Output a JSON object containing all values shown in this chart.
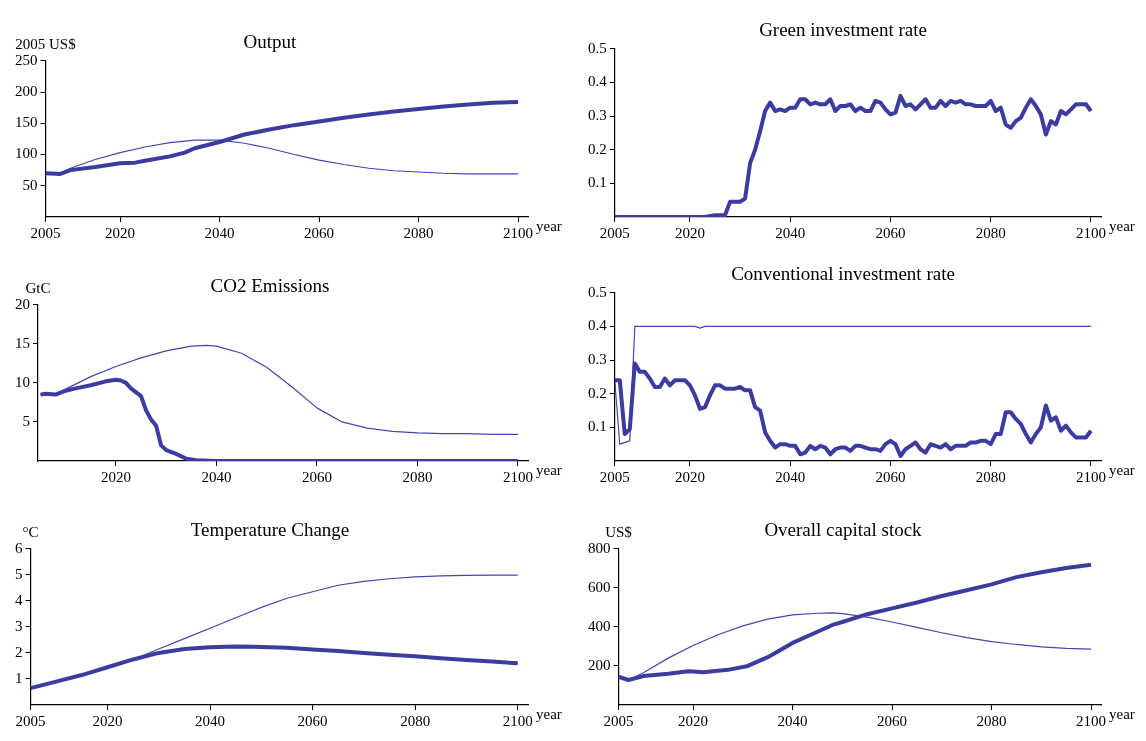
{
  "chart_data": [
    {
      "type": "line",
      "title": "Output",
      "ylabel": "2005 US$",
      "xlabel": "year",
      "xlim": [
        2005,
        2102
      ],
      "xticks": [
        2005,
        2020,
        2040,
        2060,
        2080,
        2100
      ],
      "ylim": [
        0,
        250
      ],
      "yticks": [
        50,
        100,
        150,
        200,
        250
      ],
      "grid": false,
      "legend": false,
      "marker": "none",
      "line_style": "solid",
      "series": [
        {
          "color": "#3c3ca0",
          "x": [
            2005,
            2008,
            2010,
            2015,
            2020,
            2023,
            2025,
            2030,
            2033,
            2035,
            2040,
            2045,
            2050,
            2055,
            2060,
            2065,
            2070,
            2075,
            2080,
            2085,
            2090,
            2095,
            2100
          ],
          "values": [
            70,
            69,
            75,
            80,
            86,
            87,
            90,
            97,
            103,
            110,
            120,
            132,
            140,
            147,
            153,
            159,
            164,
            169,
            173,
            177,
            180,
            183,
            184
          ]
        },
        {
          "color": "#4444b4",
          "x": [
            2005,
            2008,
            2010,
            2015,
            2020,
            2025,
            2030,
            2035,
            2040,
            2045,
            2050,
            2055,
            2060,
            2065,
            2070,
            2075,
            2080,
            2085,
            2090,
            2095,
            2100
          ],
          "values": [
            70,
            70,
            78,
            92,
            103,
            112,
            119,
            123,
            123,
            118,
            110,
            100,
            91,
            84,
            78,
            74,
            72,
            70,
            69,
            69,
            69
          ]
        }
      ]
    },
    {
      "type": "line",
      "title": "Green investment rate",
      "xlabel": "year",
      "xlim": [
        2005,
        2102
      ],
      "xticks": [
        2005,
        2020,
        2040,
        2060,
        2080,
        2100
      ],
      "ylim": [
        0,
        0.5
      ],
      "yticks": [
        0.1,
        0.2,
        0.3,
        0.4,
        0.5
      ],
      "grid": false,
      "legend": false,
      "marker": "none",
      "line_style": "solid",
      "series": [
        {
          "color": "#3c3ca0",
          "x": [
            2005,
            2023,
            2025,
            2027,
            2028,
            2030,
            2031,
            2032,
            2033,
            2034,
            2035,
            2036,
            2037,
            2038,
            2039,
            2040,
            2041,
            2042,
            2043,
            2044,
            2045,
            2046,
            2047,
            2048,
            2049,
            2050,
            2051,
            2052,
            2053,
            2054,
            2055,
            2056,
            2057,
            2058,
            2059,
            2060,
            2061,
            2062,
            2063,
            2064,
            2065,
            2066,
            2067,
            2068,
            2069,
            2070,
            2071,
            2072,
            2073,
            2074,
            2075,
            2076,
            2077,
            2078,
            2079,
            2080,
            2081,
            2082,
            2083,
            2084,
            2085,
            2086,
            2087,
            2088,
            2089,
            2090,
            2091,
            2092,
            2093,
            2094,
            2095,
            2096,
            2097,
            2098,
            2099,
            2100
          ],
          "values": [
            0,
            0,
            0.005,
            0.005,
            0.045,
            0.045,
            0.055,
            0.16,
            0.2,
            0.255,
            0.315,
            0.34,
            0.315,
            0.32,
            0.315,
            0.325,
            0.325,
            0.35,
            0.35,
            0.335,
            0.34,
            0.335,
            0.335,
            0.35,
            0.315,
            0.33,
            0.33,
            0.335,
            0.315,
            0.325,
            0.315,
            0.315,
            0.345,
            0.34,
            0.32,
            0.305,
            0.31,
            0.36,
            0.33,
            0.335,
            0.32,
            0.335,
            0.35,
            0.325,
            0.325,
            0.345,
            0.33,
            0.345,
            0.34,
            0.345,
            0.335,
            0.335,
            0.33,
            0.33,
            0.33,
            0.345,
            0.315,
            0.325,
            0.275,
            0.265,
            0.285,
            0.295,
            0.325,
            0.35,
            0.33,
            0.305,
            0.245,
            0.285,
            0.275,
            0.315,
            0.305,
            0.32,
            0.335,
            0.335,
            0.335,
            0.315
          ]
        }
      ]
    },
    {
      "type": "line",
      "title": "CO2 Emissions",
      "ylabel": "GtC",
      "xlabel": "year",
      "xlim": [
        2004.5,
        2102
      ],
      "xticks": [
        2020,
        2040,
        2060,
        2080,
        2100
      ],
      "ylim": [
        0,
        20
      ],
      "yticks": [
        5,
        10,
        15,
        20
      ],
      "grid": false,
      "legend": false,
      "marker": "none",
      "line_style": "solid",
      "series": [
        {
          "color": "#3c3ca0",
          "x": [
            2005,
            2006,
            2008,
            2010,
            2012,
            2015,
            2018,
            2020,
            2021,
            2022,
            2023,
            2025,
            2026,
            2027,
            2028,
            2029,
            2030,
            2032,
            2034,
            2036,
            2040,
            2050,
            2100
          ],
          "values": [
            8.5,
            8.6,
            8.5,
            9.0,
            9.3,
            9.7,
            10.2,
            10.4,
            10.3,
            10.0,
            9.3,
            8.3,
            6.5,
            5.3,
            4.5,
            2.0,
            1.4,
            0.9,
            0.3,
            0.1,
            0,
            0,
            0
          ]
        },
        {
          "color": "#4444b4",
          "x": [
            2005,
            2008,
            2010,
            2015,
            2020,
            2025,
            2030,
            2035,
            2038,
            2040,
            2045,
            2050,
            2055,
            2060,
            2065,
            2070,
            2075,
            2080,
            2085,
            2090,
            2095,
            2100
          ],
          "values": [
            8.5,
            8.5,
            9.2,
            10.8,
            12.1,
            13.2,
            14.1,
            14.7,
            14.8,
            14.7,
            13.8,
            12.0,
            9.5,
            6.8,
            5.0,
            4.2,
            3.8,
            3.6,
            3.5,
            3.5,
            3.4,
            3.4
          ]
        }
      ]
    },
    {
      "type": "line",
      "title": "Conventional investment rate",
      "xlabel": "year",
      "xlim": [
        2005,
        2102
      ],
      "xticks": [
        2005,
        2020,
        2040,
        2060,
        2080,
        2100
      ],
      "ylim": [
        0,
        0.5
      ],
      "yticks": [
        0.1,
        0.2,
        0.3,
        0.4,
        0.5
      ],
      "grid": false,
      "legend": false,
      "marker": "none",
      "line_style": "solid",
      "series": [
        {
          "color": "#3c3ca0",
          "x": [
            2005,
            2006,
            2007,
            2008,
            2009,
            2010,
            2011,
            2012,
            2013,
            2014,
            2015,
            2016,
            2017,
            2018,
            2019,
            2020,
            2021,
            2022,
            2023,
            2024,
            2025,
            2026,
            2027,
            2028,
            2029,
            2030,
            2031,
            2032,
            2033,
            2034,
            2035,
            2036,
            2037,
            2038,
            2039,
            2040,
            2041,
            2042,
            2043,
            2044,
            2045,
            2046,
            2047,
            2048,
            2049,
            2050,
            2051,
            2052,
            2053,
            2054,
            2055,
            2056,
            2057,
            2058,
            2059,
            2060,
            2061,
            2062,
            2063,
            2064,
            2065,
            2066,
            2067,
            2068,
            2069,
            2070,
            2071,
            2072,
            2073,
            2074,
            2075,
            2076,
            2077,
            2078,
            2079,
            2080,
            2081,
            2082,
            2083,
            2084,
            2085,
            2086,
            2087,
            2088,
            2089,
            2090,
            2091,
            2092,
            2093,
            2094,
            2095,
            2096,
            2097,
            2098,
            2099,
            2100
          ],
          "values": [
            0.24,
            0.24,
            0.08,
            0.095,
            0.29,
            0.265,
            0.265,
            0.245,
            0.22,
            0.22,
            0.245,
            0.225,
            0.24,
            0.24,
            0.24,
            0.225,
            0.195,
            0.155,
            0.16,
            0.195,
            0.225,
            0.225,
            0.215,
            0.215,
            0.215,
            0.22,
            0.21,
            0.21,
            0.16,
            0.15,
            0.085,
            0.06,
            0.04,
            0.05,
            0.05,
            0.045,
            0.045,
            0.02,
            0.025,
            0.045,
            0.035,
            0.045,
            0.04,
            0.02,
            0.035,
            0.04,
            0.04,
            0.03,
            0.045,
            0.045,
            0.04,
            0.035,
            0.035,
            0.03,
            0.05,
            0.06,
            0.05,
            0.015,
            0.035,
            0.045,
            0.055,
            0.035,
            0.025,
            0.05,
            0.045,
            0.04,
            0.05,
            0.035,
            0.045,
            0.045,
            0.045,
            0.055,
            0.055,
            0.06,
            0.06,
            0.05,
            0.08,
            0.08,
            0.145,
            0.145,
            0.125,
            0.11,
            0.08,
            0.055,
            0.08,
            0.1,
            0.165,
            0.12,
            0.13,
            0.09,
            0.105,
            0.085,
            0.07,
            0.07,
            0.07,
            0.09
          ]
        },
        {
          "color": "#4444b4",
          "x": [
            2005,
            2006,
            2008,
            2009,
            2021,
            2022,
            2023,
            2100
          ],
          "values": [
            0.24,
            0.05,
            0.06,
            0.4,
            0.4,
            0.395,
            0.4,
            0.4
          ]
        }
      ]
    },
    {
      "type": "line",
      "title": "Temperature Change",
      "ylabel": "°C",
      "xlabel": "year",
      "xlim": [
        2005,
        2102
      ],
      "xticks": [
        2005,
        2020,
        2040,
        2060,
        2080,
        2100
      ],
      "ylim": [
        0,
        6
      ],
      "yticks": [
        1,
        2,
        3,
        4,
        5,
        6
      ],
      "grid": false,
      "legend": false,
      "marker": "none",
      "line_style": "solid",
      "series": [
        {
          "color": "#3c3ca0",
          "x": [
            2005,
            2010,
            2015,
            2020,
            2025,
            2030,
            2035,
            2040,
            2045,
            2050,
            2055,
            2060,
            2065,
            2070,
            2075,
            2080,
            2085,
            2090,
            2095,
            2100
          ],
          "values": [
            0.65,
            0.9,
            1.15,
            1.45,
            1.75,
            2.0,
            2.15,
            2.22,
            2.25,
            2.23,
            2.2,
            2.13,
            2.07,
            2.0,
            1.93,
            1.87,
            1.8,
            1.73,
            1.67,
            1.6
          ]
        },
        {
          "color": "#4444b4",
          "x": [
            2005,
            2010,
            2015,
            2020,
            2025,
            2030,
            2035,
            2040,
            2045,
            2050,
            2055,
            2060,
            2065,
            2070,
            2075,
            2080,
            2085,
            2090,
            2095,
            2100
          ],
          "values": [
            0.65,
            0.9,
            1.15,
            1.45,
            1.75,
            2.15,
            2.55,
            2.95,
            3.35,
            3.75,
            4.1,
            4.35,
            4.6,
            4.75,
            4.85,
            4.92,
            4.96,
            4.98,
            4.99,
            4.99
          ]
        }
      ]
    },
    {
      "type": "line",
      "title": "Overall capital stock",
      "ylabel": "US$",
      "xlabel": "year",
      "xlim": [
        2005,
        2102
      ],
      "xticks": [
        2005,
        2020,
        2040,
        2060,
        2080,
        2100
      ],
      "ylim": [
        0,
        800
      ],
      "yticks": [
        200,
        400,
        600,
        800
      ],
      "grid": false,
      "legend": false,
      "marker": "none",
      "line_style": "solid",
      "series": [
        {
          "color": "#3c3ca0",
          "x": [
            2005,
            2007,
            2010,
            2015,
            2019,
            2020,
            2022,
            2027,
            2031,
            2035,
            2040,
            2045,
            2048,
            2050,
            2055,
            2060,
            2065,
            2070,
            2075,
            2080,
            2085,
            2090,
            2095,
            2100
          ],
          "values": [
            145,
            128,
            148,
            160,
            173,
            172,
            168,
            180,
            200,
            245,
            318,
            375,
            410,
            425,
            465,
            495,
            525,
            558,
            588,
            618,
            655,
            680,
            702,
            718
          ]
        },
        {
          "color": "#4444b4",
          "x": [
            2005,
            2007,
            2010,
            2015,
            2020,
            2025,
            2030,
            2035,
            2040,
            2045,
            2048,
            2050,
            2055,
            2060,
            2065,
            2070,
            2075,
            2080,
            2085,
            2090,
            2095,
            2100
          ],
          "values": [
            145,
            128,
            165,
            240,
            305,
            360,
            405,
            440,
            462,
            470,
            472,
            468,
            450,
            425,
            398,
            370,
            345,
            325,
            310,
            298,
            290,
            286
          ]
        }
      ]
    }
  ]
}
